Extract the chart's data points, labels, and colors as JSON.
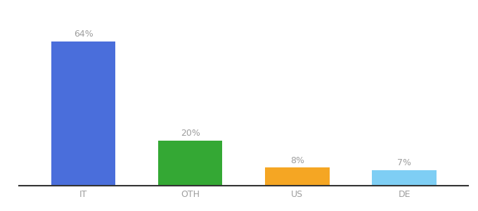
{
  "categories": [
    "IT",
    "OTH",
    "US",
    "DE"
  ],
  "values": [
    64,
    20,
    8,
    7
  ],
  "labels": [
    "64%",
    "20%",
    "8%",
    "7%"
  ],
  "bar_colors": [
    "#4a6edb",
    "#34a834",
    "#f5a623",
    "#7ecef4"
  ],
  "background_color": "#ffffff",
  "ylim": [
    0,
    75
  ],
  "label_fontsize": 9,
  "tick_fontsize": 9,
  "bar_width": 0.6,
  "label_color": "#9e9e9e",
  "tick_color": "#9e9e9e",
  "spine_color": "#333333"
}
